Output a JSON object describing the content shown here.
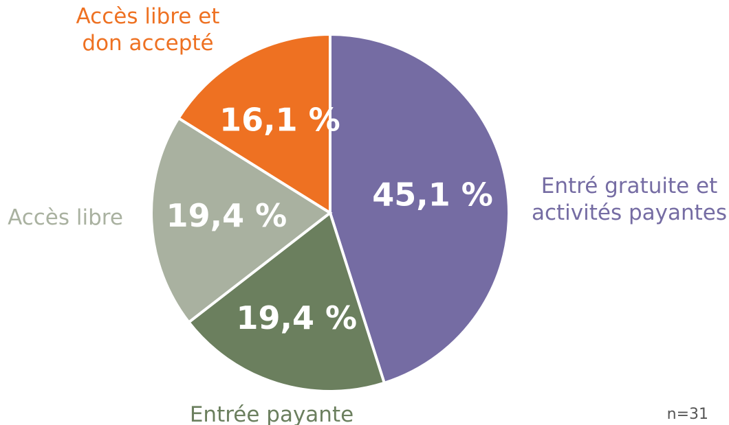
{
  "chart_data": {
    "type": "pie",
    "categories": [
      [
        "Entré gratuite et",
        "activités payantes"
      ],
      [
        "Entrée payante"
      ],
      [
        "Accès libre"
      ],
      [
        "Accès libre et",
        "don accepté"
      ]
    ],
    "values": [
      45.1,
      19.4,
      19.4,
      16.1
    ],
    "value_labels": [
      "45,1 %",
      "19,4 %",
      "19,4 %",
      "16,1 %"
    ],
    "colors": [
      "#756ca3",
      "#6b7f5e",
      "#a9b1a0",
      "#ee7122"
    ],
    "label_colors": [
      "#756ca3",
      "#6b7f5e",
      "#a9b1a0",
      "#ee7122"
    ],
    "annotation": "n=31"
  }
}
